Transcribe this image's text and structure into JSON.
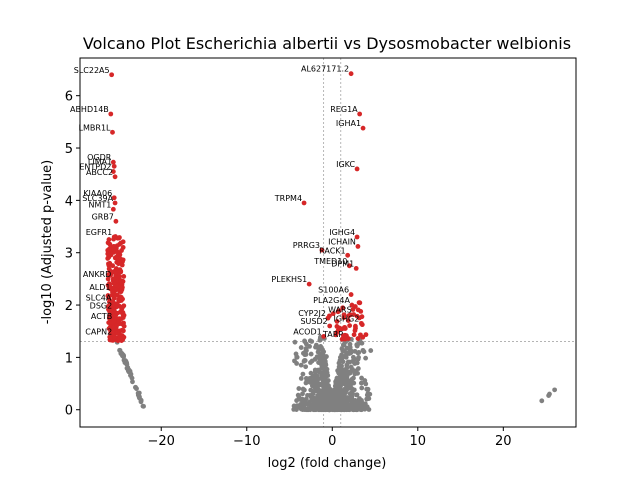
{
  "chart_data": {
    "type": "scatter",
    "title": "Volcano Plot Escherichia albertii vs Dysosmobacter welbionis",
    "xlabel": "log2 (fold change)",
    "ylabel": "-log10 (Adjusted p-value)",
    "xlim": [
      -29.5,
      28.5
    ],
    "ylim": [
      -0.33,
      6.72
    ],
    "xticks": [
      -20,
      -10,
      0,
      10,
      20
    ],
    "yticks": [
      0,
      1,
      2,
      3,
      4,
      5,
      6
    ],
    "threshold_lines": {
      "y": 1.3,
      "x": [
        -1,
        1
      ]
    },
    "colors": {
      "significant": "#d62728",
      "nonsignificant": "#808080",
      "threshold": "#888888"
    },
    "significant_labeled": [
      {
        "label": "SLC22A5",
        "x": -25.8,
        "y": 6.4
      },
      {
        "label": "ABHD14B",
        "x": -25.9,
        "y": 5.65
      },
      {
        "label": "LMBR1L",
        "x": -25.7,
        "y": 5.3
      },
      {
        "label": "OGDR",
        "x": -25.6,
        "y": 4.73
      },
      {
        "label": "LIMA1",
        "x": -25.5,
        "y": 4.65
      },
      {
        "label": "ENTPD2",
        "x": -25.6,
        "y": 4.55
      },
      {
        "label": "ABCC2",
        "x": -25.4,
        "y": 4.45
      },
      {
        "label": "KIAA06",
        "x": -25.5,
        "y": 4.05
      },
      {
        "label": "SLC39A",
        "x": -25.4,
        "y": 3.95
      },
      {
        "label": "NMT1",
        "x": -25.6,
        "y": 3.83
      },
      {
        "label": "GRB7",
        "x": -25.3,
        "y": 3.6
      },
      {
        "label": "EGFR1",
        "x": -25.5,
        "y": 3.3
      },
      {
        "label": "ANKRD",
        "x": -25.6,
        "y": 2.5
      },
      {
        "label": "ALD1",
        "x": -25.7,
        "y": 2.25
      },
      {
        "label": "SLC4A",
        "x": -25.6,
        "y": 2.05
      },
      {
        "label": "DSG2",
        "x": -25.5,
        "y": 1.9
      },
      {
        "label": "ACTB",
        "x": -25.5,
        "y": 1.7
      },
      {
        "label": "CAPN2",
        "x": -25.5,
        "y": 1.4
      },
      {
        "label": "AL627171.2",
        "x": 2.2,
        "y": 6.42
      },
      {
        "label": "REG1A",
        "x": 3.2,
        "y": 5.65
      },
      {
        "label": "IGHA1",
        "x": 3.6,
        "y": 5.38
      },
      {
        "label": "IGKC",
        "x": 2.9,
        "y": 4.6
      },
      {
        "label": "TRPM4",
        "x": -3.3,
        "y": 3.95
      },
      {
        "label": "IGHG4",
        "x": 2.9,
        "y": 3.3
      },
      {
        "label": "ICHAIN",
        "x": 3.0,
        "y": 3.12
      },
      {
        "label": "PRRG3",
        "x": -1.2,
        "y": 3.05
      },
      {
        "label": "RACK1",
        "x": 1.8,
        "y": 2.95
      },
      {
        "label": "TMED10",
        "x": 2.0,
        "y": 2.75
      },
      {
        "label": "DPM1",
        "x": 2.8,
        "y": 2.7
      },
      {
        "label": "PLEKHS1",
        "x": -2.7,
        "y": 2.4
      },
      {
        "label": "S100A6",
        "x": 2.2,
        "y": 2.2
      },
      {
        "label": "PLA2G4A",
        "x": 2.3,
        "y": 2.0
      },
      {
        "label": "WARS",
        "x": 2.5,
        "y": 1.82
      },
      {
        "label": "CYP2J2",
        "x": -0.5,
        "y": 1.75
      },
      {
        "label": "IGHG2",
        "x": 3.4,
        "y": 1.65
      },
      {
        "label": "SUSD2",
        "x": -0.3,
        "y": 1.6
      },
      {
        "label": "ACOD1",
        "x": -1.0,
        "y": 1.4
      },
      {
        "label": "TARP",
        "x": 1.5,
        "y": 1.35
      }
    ]
  }
}
